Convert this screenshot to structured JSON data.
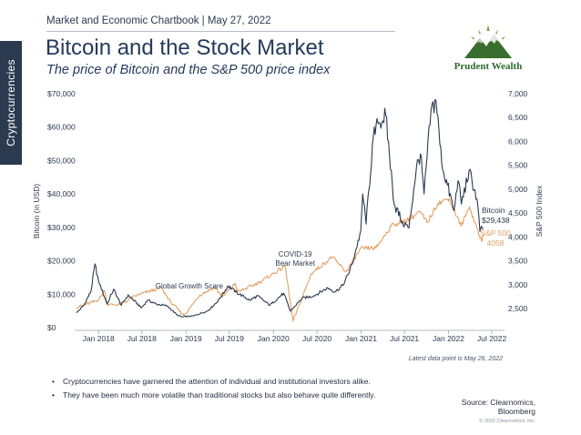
{
  "side_tab": "Cryptocurrencies",
  "header": {
    "kicker": "Market and Economic Chartbook | May 27, 2022",
    "title": "Bitcoin and the Stock Market",
    "subtitle": "The price of Bitcoin and the S&P 500 price index"
  },
  "logo": {
    "name": "Prudent Wealth",
    "icon": "mountain-logo-icon"
  },
  "colors": {
    "bitcoin": "#2b3a4f",
    "sp500": "#e3a063",
    "sidebar": "#2b3a4f",
    "title": "#253a5a"
  },
  "chart_data": {
    "type": "line",
    "title": "Bitcoin and the Stock Market",
    "subtitle": "The price of Bitcoin and the S&P 500 price index",
    "x_ticks": [
      "Jan 2018",
      "Jul 2018",
      "Jan 2019",
      "Jul 2019",
      "Jan 2020",
      "Jul 2020",
      "Jan 2021",
      "Jul 2021",
      "Jan 2022",
      "Jul 2022"
    ],
    "xlim": [
      "2017-10-01",
      "2022-07-31"
    ],
    "y_left": {
      "label": "Bitcoin (in USD)",
      "lim": [
        0,
        70000
      ],
      "ticks": [
        0,
        10000,
        20000,
        30000,
        40000,
        50000,
        60000,
        70000
      ],
      "tick_labels": [
        "$0",
        "$10,000",
        "$20,000",
        "$30,000",
        "$40,000",
        "$50,000",
        "$60,000",
        "$70,000"
      ]
    },
    "y_right": {
      "label": "S&P 500 Index",
      "lim": [
        2100,
        7000
      ],
      "ticks": [
        2500,
        3000,
        3500,
        4000,
        4500,
        5000,
        5500,
        6000,
        6500,
        7000
      ],
      "tick_labels": [
        "2,500",
        "3,000",
        "3,500",
        "4,000",
        "4,500",
        "5,000",
        "5,500",
        "6,000",
        "6,500",
        "7,000"
      ]
    },
    "grid": false,
    "series": [
      {
        "name": "Bitcoin",
        "axis": "left",
        "points": [
          [
            "2017-10-01",
            4400
          ],
          [
            "2017-11-01",
            6700
          ],
          [
            "2017-12-01",
            11000
          ],
          [
            "2017-12-17",
            19100
          ],
          [
            "2018-01-01",
            14000
          ],
          [
            "2018-02-06",
            7000
          ],
          [
            "2018-03-05",
            11500
          ],
          [
            "2018-04-06",
            6700
          ],
          [
            "2018-05-05",
            9800
          ],
          [
            "2018-06-29",
            5900
          ],
          [
            "2018-07-25",
            8200
          ],
          [
            "2018-09-01",
            7000
          ],
          [
            "2018-10-15",
            6500
          ],
          [
            "2018-11-25",
            3800
          ],
          [
            "2018-12-15",
            3200
          ],
          [
            "2019-02-01",
            3500
          ],
          [
            "2019-04-02",
            5000
          ],
          [
            "2019-05-15",
            8000
          ],
          [
            "2019-06-26",
            12500
          ],
          [
            "2019-08-01",
            10500
          ],
          [
            "2019-09-25",
            8200
          ],
          [
            "2019-10-26",
            9500
          ],
          [
            "2019-12-17",
            6700
          ],
          [
            "2020-02-13",
            10300
          ],
          [
            "2020-03-12",
            4900
          ],
          [
            "2020-04-30",
            8800
          ],
          [
            "2020-06-15",
            9400
          ],
          [
            "2020-08-15",
            11900
          ],
          [
            "2020-09-15",
            10700
          ],
          [
            "2020-10-21",
            12900
          ],
          [
            "2020-11-25",
            19000
          ],
          [
            "2020-12-31",
            29000
          ],
          [
            "2021-01-08",
            40000
          ],
          [
            "2021-01-22",
            31000
          ],
          [
            "2021-02-21",
            57000
          ],
          [
            "2021-03-13",
            61000
          ],
          [
            "2021-04-14",
            63500
          ],
          [
            "2021-05-19",
            37000
          ],
          [
            "2021-06-22",
            31700
          ],
          [
            "2021-07-20",
            29800
          ],
          [
            "2021-08-20",
            48000
          ],
          [
            "2021-09-06",
            52000
          ],
          [
            "2021-09-21",
            40000
          ],
          [
            "2021-10-20",
            65000
          ],
          [
            "2021-11-10",
            68000
          ],
          [
            "2021-12-04",
            49000
          ],
          [
            "2022-01-24",
            35000
          ],
          [
            "2022-02-10",
            44000
          ],
          [
            "2022-02-24",
            37000
          ],
          [
            "2022-03-28",
            47000
          ],
          [
            "2022-04-30",
            38500
          ],
          [
            "2022-05-12",
            28800
          ],
          [
            "2022-05-26",
            29438
          ]
        ]
      },
      {
        "name": "S&P 500",
        "axis": "right",
        "points": [
          [
            "2017-10-01",
            2520
          ],
          [
            "2017-12-31",
            2675
          ],
          [
            "2018-01-26",
            2872
          ],
          [
            "2018-02-08",
            2581
          ],
          [
            "2018-04-02",
            2582
          ],
          [
            "2018-06-12",
            2786
          ],
          [
            "2018-09-20",
            2930
          ],
          [
            "2018-10-29",
            2641
          ],
          [
            "2018-12-24",
            2351
          ],
          [
            "2019-02-28",
            2784
          ],
          [
            "2019-04-30",
            2945
          ],
          [
            "2019-06-03",
            2744
          ],
          [
            "2019-07-26",
            3025
          ],
          [
            "2019-08-05",
            2844
          ],
          [
            "2019-10-31",
            3037
          ],
          [
            "2019-12-31",
            3230
          ],
          [
            "2020-02-19",
            3386
          ],
          [
            "2020-03-23",
            2237
          ],
          [
            "2020-06-08",
            3232
          ],
          [
            "2020-09-02",
            3580
          ],
          [
            "2020-10-30",
            3270
          ],
          [
            "2020-12-31",
            3756
          ],
          [
            "2021-03-04",
            3768
          ],
          [
            "2021-05-07",
            4232
          ],
          [
            "2021-07-30",
            4395
          ],
          [
            "2021-09-02",
            4537
          ],
          [
            "2021-10-04",
            4300
          ],
          [
            "2021-11-18",
            4704
          ],
          [
            "2021-12-30",
            4793
          ],
          [
            "2022-01-03",
            4797
          ],
          [
            "2022-02-23",
            4225
          ],
          [
            "2022-03-29",
            4631
          ],
          [
            "2022-05-20",
            3901
          ],
          [
            "2022-05-26",
            4058
          ]
        ]
      }
    ],
    "annotations": [
      {
        "text": "COVID-19 Bear Market",
        "lines": [
          "COVID-19",
          "Bear Market"
        ]
      },
      {
        "text": "Global Growth Scare",
        "lines": [
          "Global Growth Scare"
        ]
      }
    ],
    "end_labels": [
      {
        "series": "Bitcoin",
        "lines": [
          "Bitcoin",
          "$29,438"
        ]
      },
      {
        "series": "S&P 500",
        "lines": [
          "S&P 500",
          "4058"
        ]
      }
    ]
  },
  "note": "Latest data point is May 26, 2022",
  "bullets": [
    "Cryptocurrencies have garnered the attention of individual and institutional investors alike.",
    "They have been much more volatile than traditional stocks but also behave quite differently."
  ],
  "source": {
    "line1": "Source: Clearnomics,",
    "line2": "Bloomberg"
  },
  "copyright": "© 2022 Clearnomics, Inc."
}
